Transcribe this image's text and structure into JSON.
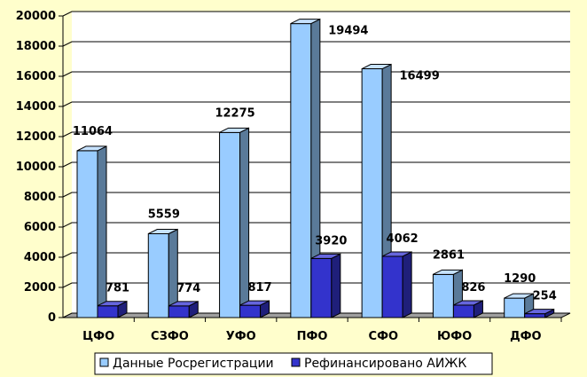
{
  "chart_data": {
    "type": "bar",
    "categories": [
      "ЦФО",
      "СЗФО",
      "УФО",
      "ПФО",
      "СФО",
      "ЮФО",
      "ДФО"
    ],
    "series": [
      {
        "name": "Данные Росрегистрации",
        "values": [
          11064,
          5559,
          12275,
          19494,
          16499,
          2861,
          1290
        ],
        "color": "#99ccff"
      },
      {
        "name": "Рефинансировано АИЖК",
        "values": [
          781,
          774,
          817,
          3920,
          4062,
          826,
          254
        ],
        "color": "#3333cc"
      }
    ],
    "ylim": [
      0,
      20000
    ],
    "yticks": [
      "0",
      "2000",
      "4000",
      "6000",
      "8000",
      "10000",
      "12000",
      "14000",
      "16000",
      "18000",
      "20000"
    ],
    "grid": true,
    "legend_position": "bottom",
    "title": "",
    "xlabel": "",
    "ylabel": ""
  }
}
